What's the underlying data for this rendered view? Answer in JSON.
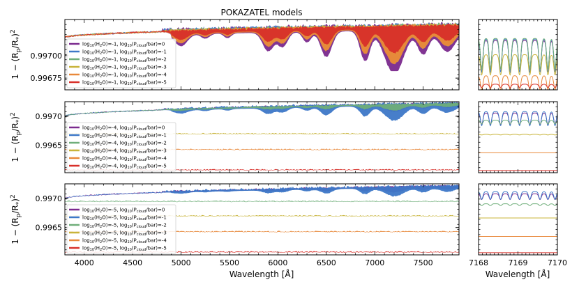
{
  "figure": {
    "title": "POKAZATEL models",
    "xlabel": "Wavelength [Å]",
    "ylabel": "1 − (R_p/R_*)²"
  },
  "chart_data": [
    {
      "type": "area",
      "title": "POKAZATEL models",
      "xlabel": "",
      "ylabel": "1 − (R_p/R_*)²",
      "xlim": [
        3800,
        7870
      ],
      "ylim": [
        0.99662,
        0.9974
      ],
      "xticks": [],
      "yticks": [
        0.99675,
        0.997
      ],
      "ytick_labels": [
        "0.99675",
        "0.99700"
      ],
      "legend_prefix": "log10(H2O)=-1, log10(Pcloud/bar)=",
      "legend_values": [
        "0",
        "-1",
        "-2",
        "-3",
        "-4",
        "-5"
      ],
      "series": [
        {
          "name": "log10(H2O)=-1, log10(Pcloud/bar)=0",
          "color": "#7b2a8e",
          "continuum": [
            0.9972,
            0.99733
          ],
          "floor": 0.99685,
          "depth": 1.0
        },
        {
          "name": "log10(H2O)=-1, log10(Pcloud/bar)=-1",
          "color": "#3e78c8",
          "continuum": [
            0.9972,
            0.99733
          ],
          "floor": 0.9971,
          "depth": 0.9
        },
        {
          "name": "log10(H2O)=-1, log10(Pcloud/bar)=-2",
          "color": "#6fae7a",
          "continuum": [
            0.9972,
            0.99733
          ],
          "floor": 0.99695,
          "depth": 0.8
        },
        {
          "name": "log10(H2O)=-1, log10(Pcloud/bar)=-3",
          "color": "#c8b43a",
          "continuum": [
            0.9972,
            0.99733
          ],
          "floor": 0.9968,
          "depth": 0.7
        },
        {
          "name": "log10(H2O)=-1, log10(Pcloud/bar)=-4",
          "color": "#e8883a",
          "continuum": [
            0.9972,
            0.99733
          ],
          "floor": 0.99671,
          "depth": 0.6
        },
        {
          "name": "log10(H2O)=-1, log10(Pcloud/bar)=-5",
          "color": "#d8302a",
          "continuum": [
            0.9972,
            0.99733
          ],
          "floor": 0.99667,
          "depth": 0.4
        }
      ]
    },
    {
      "type": "area",
      "xlim": [
        3800,
        7870
      ],
      "ylim": [
        0.99603,
        0.99725
      ],
      "yticks": [
        0.9965,
        0.997
      ],
      "ytick_labels": [
        "0.9965",
        "0.9970"
      ],
      "legend_prefix": "log10(H2O)=-4, log10(Pcloud/bar)=",
      "legend_values": [
        "0",
        "-1",
        "-2",
        "-3",
        "-4",
        "-5"
      ],
      "series": [
        {
          "name": "log10(H2O)=-4, log10(Pcloud/bar)=0",
          "color": "#7b2a8e",
          "continuum": [
            0.997,
            0.99722
          ],
          "floor": 0.997,
          "depth": 0.5
        },
        {
          "name": "log10(H2O)=-4, log10(Pcloud/bar)=-1",
          "color": "#3e78c8",
          "continuum": [
            0.997,
            0.99722
          ],
          "floor": 0.9969,
          "depth": 0.8
        },
        {
          "name": "log10(H2O)=-4, log10(Pcloud/bar)=-2",
          "color": "#6fae7a",
          "continuum": [
            0.997,
            0.99722
          ],
          "floor": 0.99694,
          "depth": 0.3
        },
        {
          "name": "log10(H2O)=-4, log10(Pcloud/bar)=-3",
          "color": "#c8b43a",
          "continuum": [
            0.9967,
            0.9967
          ],
          "floor": 0.9967,
          "depth": 0
        },
        {
          "name": "log10(H2O)=-4, log10(Pcloud/bar)=-4",
          "color": "#e8883a",
          "continuum": [
            0.99643,
            0.99643
          ],
          "floor": 0.99643,
          "depth": 0
        },
        {
          "name": "log10(H2O)=-4, log10(Pcloud/bar)=-5",
          "color": "#d8302a",
          "continuum": [
            0.99608,
            0.99608
          ],
          "floor": 0.99608,
          "depth": 0
        }
      ]
    },
    {
      "type": "area",
      "xlabel": "Wavelength [Å]",
      "xlim": [
        3800,
        7870
      ],
      "ylim": [
        0.99603,
        0.99725
      ],
      "xticks": [
        4000,
        4500,
        5000,
        5500,
        6000,
        6500,
        7000,
        7500
      ],
      "yticks": [
        0.9965,
        0.997
      ],
      "ytick_labels": [
        "0.9965",
        "0.9970"
      ],
      "legend_prefix": "log10(H2O)=-5, log10(Pcloud/bar)=",
      "legend_values": [
        "0",
        "-1",
        "-2",
        "-3",
        "-4",
        "-5"
      ],
      "series": [
        {
          "name": "log10(H2O)=-5, log10(Pcloud/bar)=0",
          "color": "#7b2a8e",
          "continuum": [
            0.997,
            0.99721
          ],
          "floor": 0.99708,
          "depth": 0.6
        },
        {
          "name": "log10(H2O)=-5, log10(Pcloud/bar)=-1",
          "color": "#3e78c8",
          "continuum": [
            0.997,
            0.99721
          ],
          "floor": 0.99703,
          "depth": 0.8
        },
        {
          "name": "log10(H2O)=-5, log10(Pcloud/bar)=-2",
          "color": "#6fae7a",
          "continuum": [
            0.99695,
            0.99695
          ],
          "floor": 0.99695,
          "depth": 0
        },
        {
          "name": "log10(H2O)=-5, log10(Pcloud/bar)=-3",
          "color": "#c8b43a",
          "continuum": [
            0.9967,
            0.9967
          ],
          "floor": 0.9967,
          "depth": 0
        },
        {
          "name": "log10(H2O)=-5, log10(Pcloud/bar)=-4",
          "color": "#e8883a",
          "continuum": [
            0.99643,
            0.99643
          ],
          "floor": 0.99643,
          "depth": 0
        },
        {
          "name": "log10(H2O)=-5, log10(Pcloud/bar)=-5",
          "color": "#d8302a",
          "continuum": [
            0.99608,
            0.99608
          ],
          "floor": 0.99608,
          "depth": 0
        }
      ]
    },
    {
      "type": "line",
      "panel": "zoom",
      "xlabel": "Wavelength [Å]",
      "xlim": [
        7168,
        7170
      ],
      "xticks": [
        7168,
        7169,
        7170
      ],
      "xtick_labels": [
        "7168",
        "7169",
        "7170"
      ],
      "colors": [
        "#7b2a8e",
        "#3e78c8",
        "#6fae7a",
        "#c8b43a",
        "#e8883a",
        "#d8302a"
      ]
    }
  ]
}
